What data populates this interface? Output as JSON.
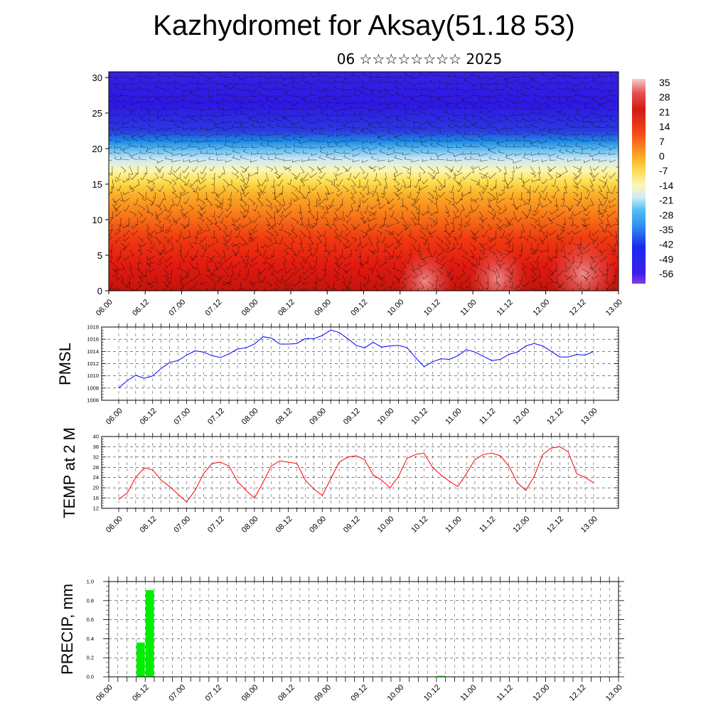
{
  "header": {
    "title": "Kazhydromet for Aksay(51.18 53)",
    "subtitle": "06 ☆☆☆☆☆☆☆☆ 2025"
  },
  "colors": {
    "pmsl_line": "#0000ff",
    "temp_line": "#ff0000",
    "precip_bar": "#00ee00"
  },
  "time_ticks": [
    "06.00",
    "06.12",
    "07.00",
    "07.12",
    "08.00",
    "08.12",
    "09.00",
    "09.12",
    "10.00",
    "10.12",
    "11.00",
    "11.12",
    "12.00",
    "12.12",
    "13.00"
  ],
  "chart_data": [
    {
      "type": "heatmap",
      "name": "vertical-section",
      "x_ticks": [
        "06.00",
        "06.12",
        "07.00",
        "07.12",
        "08.00",
        "08.12",
        "09.00",
        "09.12",
        "10.00",
        "10.12",
        "11.00",
        "11.12",
        "12.00",
        "12.12",
        "13.00"
      ],
      "y_ticks": [
        0,
        5,
        10,
        15,
        20,
        25,
        30
      ],
      "ylim": [
        0,
        30.8
      ],
      "colorbar_labels": [
        "35",
        "28",
        "21",
        "14",
        "7",
        "0",
        "-7",
        "-14",
        "-21",
        "-28",
        "-35",
        "-42",
        "-49",
        "-56"
      ],
      "overlay": "wind barbs and contour lines"
    },
    {
      "type": "line",
      "ylabel": "PMSL",
      "ylim": [
        1006,
        1018
      ],
      "y_ticks": [
        1006,
        1008,
        1010,
        1012,
        1014,
        1016,
        1018
      ],
      "x": [
        "06.00",
        "06.03",
        "06.06",
        "06.09",
        "06.12",
        "06.15",
        "06.18",
        "06.21",
        "07.00",
        "07.03",
        "07.06",
        "07.09",
        "07.12",
        "07.15",
        "07.18",
        "07.21",
        "08.00",
        "08.03",
        "08.06",
        "08.09",
        "08.12",
        "08.15",
        "08.18",
        "08.21",
        "09.00",
        "09.03",
        "09.06",
        "09.09",
        "09.12",
        "09.15",
        "09.18",
        "09.21",
        "10.00",
        "10.03",
        "10.06",
        "10.09",
        "10.12",
        "10.15",
        "10.18",
        "10.21",
        "11.00",
        "11.03",
        "11.06",
        "11.09",
        "11.12",
        "11.15",
        "11.18",
        "11.21",
        "12.00",
        "12.03",
        "12.06",
        "12.09",
        "12.12",
        "12.15",
        "12.18",
        "12.21",
        "13.00"
      ],
      "values": [
        1008.0,
        1009.2,
        1010.1,
        1009.6,
        1010.0,
        1011.2,
        1012.2,
        1012.5,
        1013.4,
        1014.1,
        1013.9,
        1013.3,
        1013.0,
        1013.6,
        1014.4,
        1014.6,
        1015.2,
        1016.4,
        1016.2,
        1015.2,
        1015.2,
        1015.3,
        1016.1,
        1016.1,
        1016.6,
        1017.5,
        1017.1,
        1016.1,
        1015.0,
        1014.6,
        1015.5,
        1014.7,
        1014.9,
        1015.0,
        1014.6,
        1013.0,
        1011.5,
        1012.3,
        1012.8,
        1012.7,
        1013.3,
        1014.3,
        1013.9,
        1013.2,
        1012.5,
        1012.7,
        1013.5,
        1013.9,
        1014.9,
        1015.3,
        1014.9,
        1014.0,
        1013.1,
        1013.1,
        1013.5,
        1013.4,
        1014.0
      ]
    },
    {
      "type": "line",
      "ylabel": "TEMP at 2 M",
      "ylim": [
        12,
        40
      ],
      "y_ticks": [
        12,
        16,
        20,
        24,
        28,
        32,
        36,
        40
      ],
      "x": [
        "06.00",
        "06.03",
        "06.06",
        "06.09",
        "06.12",
        "06.15",
        "06.18",
        "06.21",
        "07.00",
        "07.03",
        "07.06",
        "07.09",
        "07.12",
        "07.15",
        "07.18",
        "07.21",
        "08.00",
        "08.03",
        "08.06",
        "08.09",
        "08.12",
        "08.15",
        "08.18",
        "08.21",
        "09.00",
        "09.03",
        "09.06",
        "09.09",
        "09.12",
        "09.15",
        "09.18",
        "09.21",
        "10.00",
        "10.03",
        "10.06",
        "10.09",
        "10.12",
        "10.15",
        "10.18",
        "10.21",
        "11.00",
        "11.03",
        "11.06",
        "11.09",
        "11.12",
        "11.15",
        "11.18",
        "11.21",
        "12.00",
        "12.03",
        "12.06",
        "12.09",
        "12.12",
        "12.15",
        "12.18",
        "12.21",
        "13.00"
      ],
      "values": [
        15.5,
        18.0,
        24.0,
        27.8,
        27.0,
        23.0,
        20.5,
        17.5,
        14.5,
        19.0,
        25.5,
        29.5,
        30.0,
        28.5,
        22.5,
        19.0,
        16.0,
        22.0,
        28.5,
        30.5,
        30.0,
        29.5,
        23.0,
        19.5,
        17.0,
        23.5,
        30.0,
        32.0,
        32.5,
        31.0,
        25.0,
        23.0,
        20.0,
        24.5,
        31.5,
        33.0,
        33.5,
        28.0,
        25.0,
        22.5,
        20.5,
        25.5,
        31.0,
        33.0,
        33.5,
        32.5,
        28.5,
        22.0,
        19.0,
        24.5,
        33.0,
        35.5,
        36.0,
        34.0,
        25.5,
        24.0,
        22.0
      ]
    },
    {
      "type": "bar",
      "ylabel": "PRECIP, mm",
      "ylim": [
        0,
        1.0
      ],
      "y_ticks": [
        "0.0",
        "0.2",
        "0.4",
        "0.6",
        "0.8",
        "1.0"
      ],
      "bars": [
        {
          "start": "06.09",
          "end": "06.12",
          "value": 0.36
        },
        {
          "start": "06.12",
          "end": "06.15",
          "value": 0.91
        },
        {
          "start": "10.12",
          "end": "10.15",
          "value": 0.01
        }
      ]
    }
  ]
}
